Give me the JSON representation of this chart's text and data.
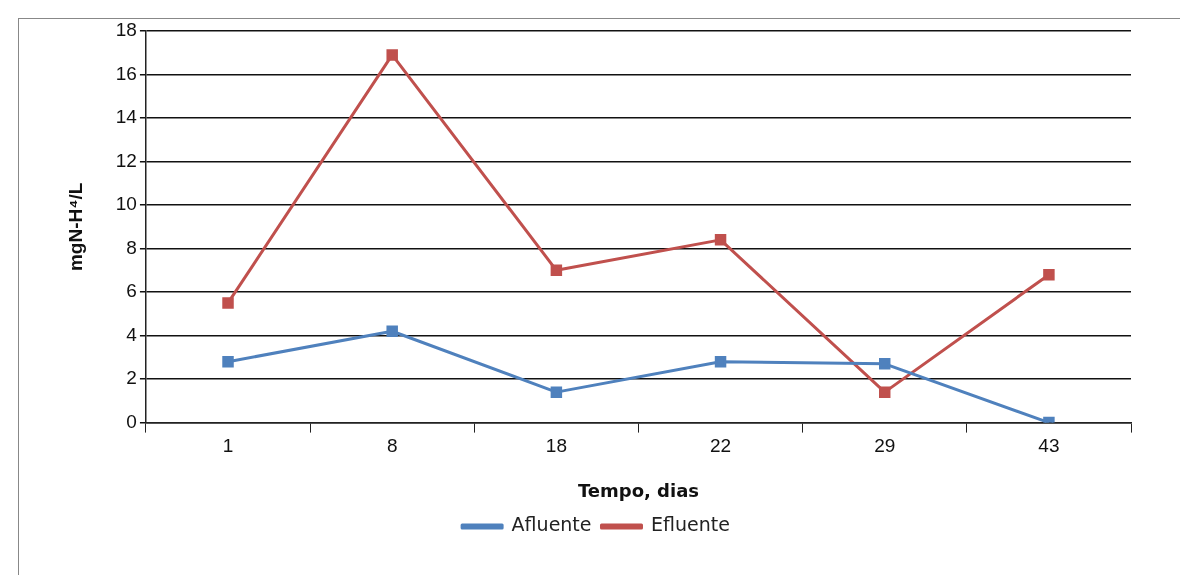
{
  "chart_data": {
    "type": "line",
    "xlabel": "Tempo, dias",
    "ylabel": "mgN-H⁴/L",
    "categories": [
      "1",
      "8",
      "18",
      "22",
      "29",
      "43"
    ],
    "series": [
      {
        "name": "Afluente",
        "color": "#4f81bd",
        "values": [
          2.8,
          4.2,
          1.4,
          2.8,
          2.7,
          0
        ]
      },
      {
        "name": "Efluente",
        "color": "#c0504d",
        "values": [
          5.5,
          16.9,
          7.0,
          8.4,
          1.4,
          6.8
        ]
      }
    ],
    "ylim": [
      0,
      18
    ],
    "yticks": [
      0,
      2,
      4,
      6,
      8,
      10,
      12,
      14,
      16,
      18
    ],
    "grid": "y",
    "legend": "bottom",
    "marker": "square",
    "line_style": "solid"
  }
}
